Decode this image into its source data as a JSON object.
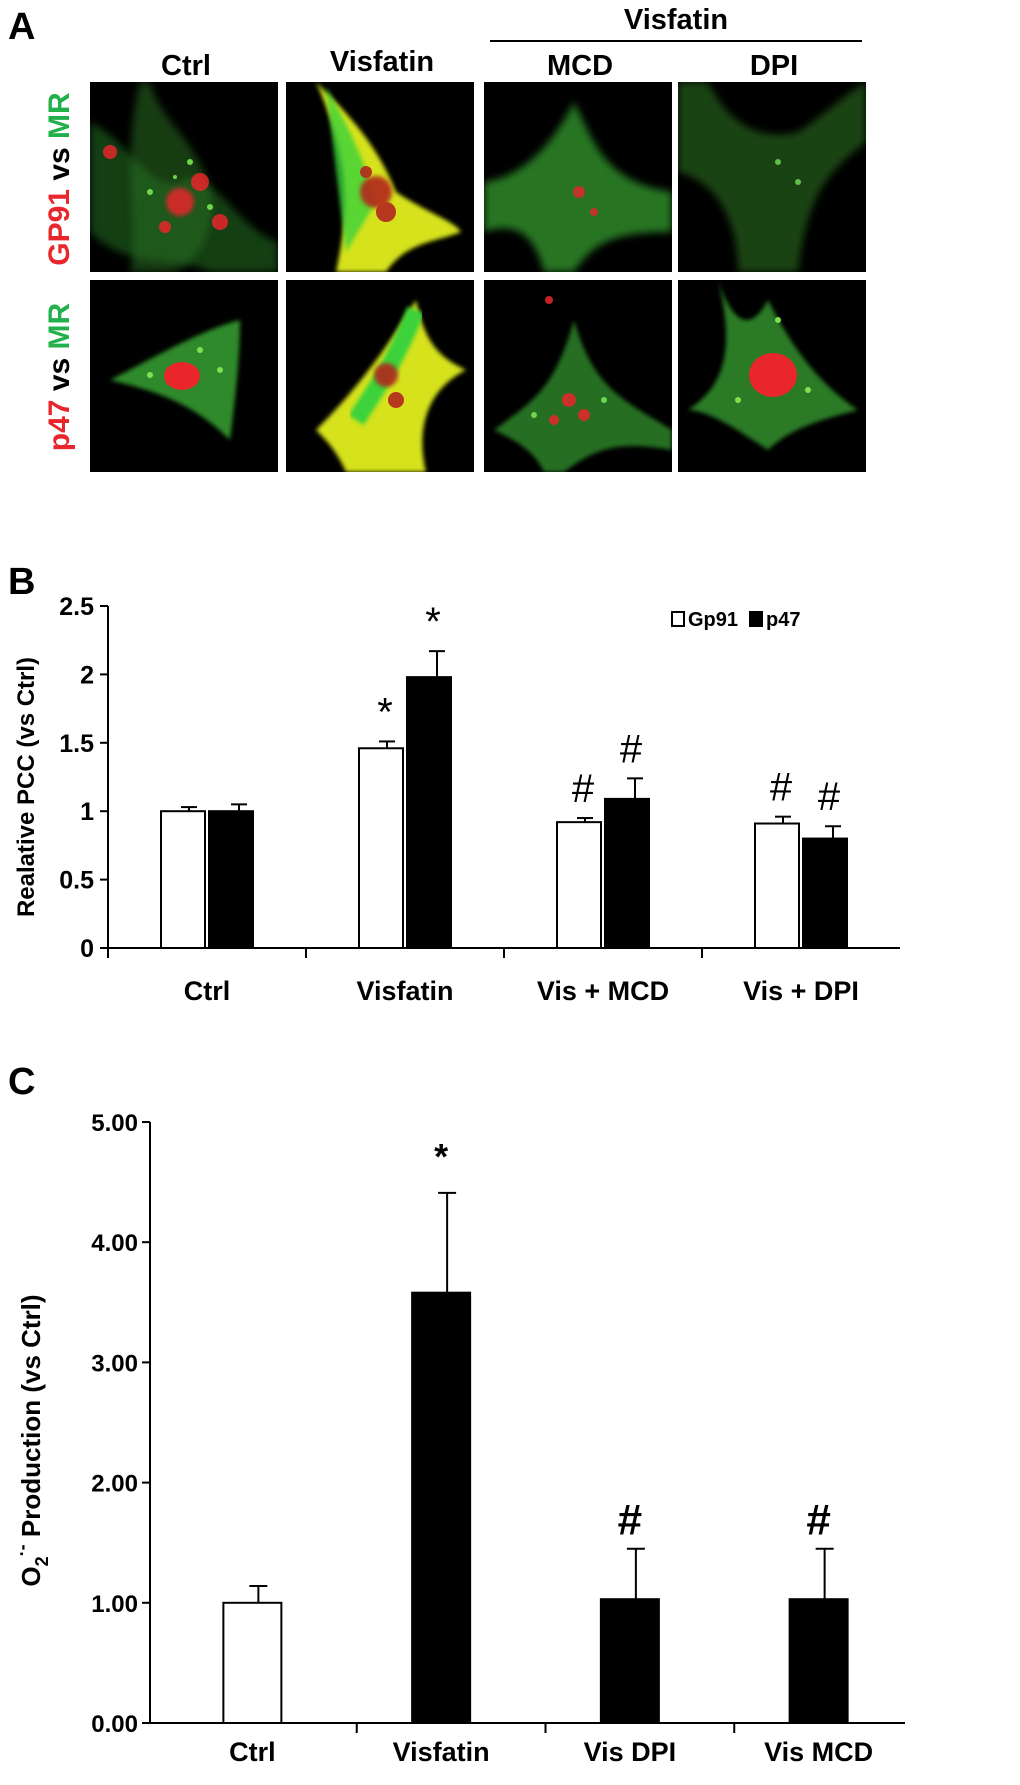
{
  "panel_a": {
    "letter": "A",
    "group_label": "Visfatin",
    "columns": [
      "Ctrl",
      "Visfatin",
      "MCD",
      "DPI"
    ],
    "rows": [
      {
        "prefix": "GP91",
        "mid": " vs ",
        "suffix": "MR"
      },
      {
        "prefix": "p47",
        "mid": " vs ",
        "suffix": "MR"
      }
    ],
    "colors": {
      "red": "#e8262b",
      "green": "#22b04b",
      "yellow": "#e6e21f"
    }
  },
  "chart_data": [
    {
      "panel": "B",
      "type": "bar",
      "title": "",
      "xlabel": "",
      "ylabel": "Realative PCC (vs Ctrl)",
      "ylim": [
        0,
        2.5
      ],
      "yticks": [
        "0",
        "0.5",
        "1",
        "1.5",
        "2",
        "2.5"
      ],
      "categories": [
        "Ctrl",
        "Visfatin",
        "Vis + MCD",
        "Vis + DPI"
      ],
      "legend_position": "top-right",
      "series": [
        {
          "name": "Gp91",
          "color": "#ffffff",
          "values": [
            1.0,
            1.46,
            0.92,
            0.91
          ],
          "errors": [
            0.03,
            0.05,
            0.03,
            0.05
          ],
          "annotations": [
            "",
            "*",
            "#",
            "#"
          ]
        },
        {
          "name": "p47",
          "color": "#000000",
          "values": [
            1.0,
            1.98,
            1.09,
            0.8
          ],
          "errors": [
            0.05,
            0.19,
            0.15,
            0.09
          ],
          "annotations": [
            "",
            "*",
            "#",
            "#"
          ]
        }
      ]
    },
    {
      "panel": "C",
      "type": "bar",
      "title": "",
      "xlabel": "",
      "ylabel_main": "O",
      "ylabel_sub": "2",
      "ylabel_sup": "·-",
      "ylabel_rest": " Production (vs Ctrl)",
      "ylim": [
        0,
        5
      ],
      "yticks": [
        "0.00",
        "1.00",
        "2.00",
        "3.00",
        "4.00",
        "5.00"
      ],
      "categories": [
        "Ctrl",
        "Visfatin",
        "Vis DPI",
        "Vis MCD"
      ],
      "values": [
        1.0,
        3.58,
        1.03,
        1.03
      ],
      "errors": [
        0.14,
        0.83,
        0.42,
        0.42
      ],
      "bar_colors": [
        "#ffffff",
        "#000000",
        "#000000",
        "#000000"
      ],
      "annotations": [
        "",
        "*",
        "#",
        "#"
      ]
    }
  ]
}
